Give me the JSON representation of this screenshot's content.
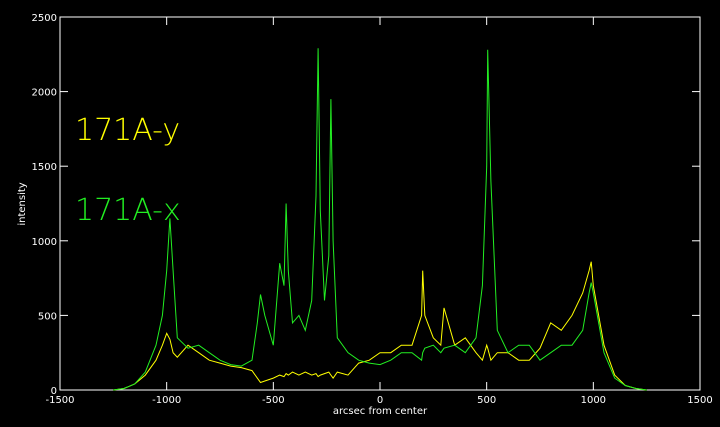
{
  "chart_data": {
    "type": "line",
    "xlabel": "arcsec from center",
    "ylabel": "intensity",
    "x": [
      -1250,
      -1200,
      -1150,
      -1100,
      -1050,
      -1020,
      -1000,
      -985,
      -970,
      -950,
      -900,
      -850,
      -800,
      -750,
      -700,
      -650,
      -600,
      -575,
      -560,
      -540,
      -500,
      -470,
      -450,
      -440,
      -430,
      -410,
      -380,
      -350,
      -320,
      -300,
      -290,
      -280,
      -260,
      -240,
      -230,
      -220,
      -200,
      -150,
      -100,
      -50,
      0,
      50,
      100,
      150,
      195,
      200,
      210,
      250,
      285,
      300,
      350,
      400,
      450,
      480,
      500,
      505,
      520,
      550,
      600,
      650,
      700,
      750,
      800,
      850,
      900,
      950,
      980,
      990,
      1000,
      1050,
      1100,
      1150,
      1200,
      1250
    ],
    "series": [
      {
        "name": "171A-y",
        "color": "#ffff00",
        "values": [
          0,
          10,
          40,
          100,
          200,
          300,
          380,
          340,
          250,
          220,
          300,
          250,
          200,
          180,
          160,
          150,
          130,
          80,
          50,
          60,
          80,
          100,
          90,
          110,
          100,
          120,
          100,
          120,
          100,
          110,
          90,
          100,
          110,
          120,
          100,
          80,
          120,
          100,
          180,
          200,
          250,
          250,
          300,
          300,
          500,
          800,
          500,
          350,
          300,
          550,
          300,
          350,
          250,
          200,
          300,
          280,
          200,
          250,
          250,
          200,
          200,
          280,
          450,
          400,
          500,
          650,
          800,
          860,
          700,
          300,
          100,
          30,
          10,
          0
        ]
      },
      {
        "name": "171A-x",
        "color": "#22ee22",
        "values": [
          0,
          10,
          40,
          120,
          300,
          500,
          800,
          1150,
          800,
          350,
          280,
          300,
          250,
          200,
          170,
          160,
          200,
          450,
          640,
          500,
          300,
          850,
          700,
          1250,
          800,
          450,
          500,
          400,
          600,
          1300,
          2290,
          1200,
          600,
          900,
          1950,
          1000,
          350,
          250,
          200,
          180,
          170,
          200,
          250,
          250,
          200,
          250,
          280,
          300,
          250,
          280,
          300,
          250,
          350,
          700,
          1500,
          2280,
          1400,
          400,
          250,
          300,
          300,
          200,
          250,
          300,
          300,
          400,
          650,
          720,
          650,
          250,
          80,
          30,
          10,
          0
        ]
      }
    ],
    "xlim": [
      -1500,
      1500
    ],
    "xticks": [
      -1500,
      -1000,
      -500,
      0,
      500,
      1000,
      1500
    ],
    "ylim": [
      0,
      2500
    ],
    "yticks": [
      0,
      500,
      1000,
      1500,
      2000,
      2500
    ]
  }
}
